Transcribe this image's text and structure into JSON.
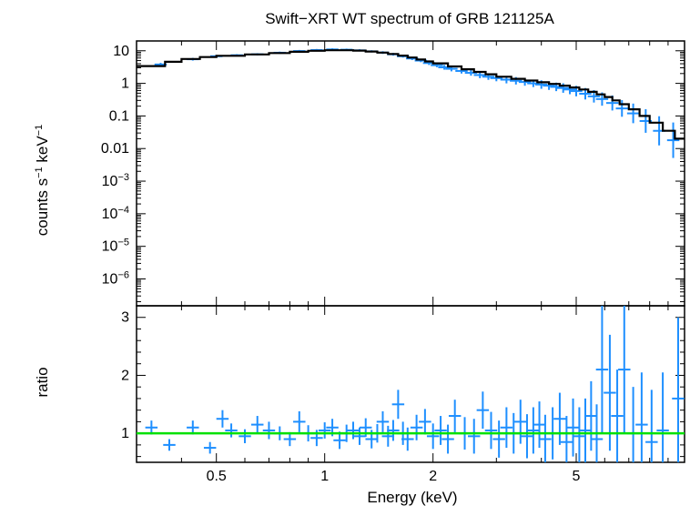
{
  "chart_data": {
    "type": "scatter",
    "title": "Swift−XRT WT spectrum of GRB 121125A",
    "xlabel": "Energy (keV)",
    "x_scale": "log",
    "xlim": [
      0.3,
      10
    ],
    "x_ticks": [
      {
        "value": 0.5,
        "label": "0.5"
      },
      {
        "value": 1,
        "label": "1"
      },
      {
        "value": 2,
        "label": "2"
      },
      {
        "value": 5,
        "label": "5"
      }
    ],
    "colors": {
      "data": "#1e8fff",
      "model": "#000000",
      "ratio_line": "#00e000"
    },
    "panels": [
      {
        "name": "spectrum",
        "ylabel": {
          "base": "counts s",
          "exp1": "−1",
          "mid": " keV",
          "exp2": "−1"
        },
        "y_scale": "log",
        "ylim": [
          1.5e-07,
          20
        ],
        "y_ticks": [
          {
            "value": 10,
            "label": "10"
          },
          {
            "value": 1,
            "label": "1"
          },
          {
            "value": 0.1,
            "label": "0.1"
          },
          {
            "value": 0.01,
            "label": "0.01"
          },
          {
            "value": 0.001,
            "base": "10",
            "exp": "−3"
          },
          {
            "value": 0.0001,
            "base": "10",
            "exp": "−4"
          },
          {
            "value": 1e-05,
            "base": "10",
            "exp": "−5"
          },
          {
            "value": 1e-06,
            "base": "10",
            "exp": "−6"
          }
        ],
        "series": [
          {
            "type": "errorbar",
            "x": [
              0.35,
              0.43,
              0.5,
              0.57,
              0.65,
              0.75,
              0.85,
              0.95,
              1.05,
              1.15,
              1.25,
              1.35,
              1.45,
              1.55,
              1.65,
              1.75,
              1.85,
              1.95,
              2.05,
              2.15,
              2.25,
              2.4,
              2.55,
              2.7,
              2.85,
              3.0,
              3.2,
              3.4,
              3.6,
              3.8,
              4.0,
              4.2,
              4.4,
              4.6,
              4.8,
              5.0,
              5.3,
              5.6,
              5.9,
              6.3,
              6.7,
              7.2,
              7.8,
              8.5,
              9.3
            ],
            "y": [
              3.8,
              5.5,
              6.8,
              7.3,
              7.8,
              8.7,
              9.8,
              10.5,
              11.0,
              10.8,
              10.3,
              9.6,
              8.8,
              7.8,
              6.8,
              5.8,
              5.0,
              4.2,
              3.6,
              3.1,
              2.8,
              2.4,
              2.1,
              1.8,
              1.6,
              1.45,
              1.3,
              1.2,
              1.1,
              1.0,
              0.92,
              0.85,
              0.78,
              0.72,
              0.65,
              0.58,
              0.48,
              0.4,
              0.33,
              0.25,
              0.17,
              0.12,
              0.07,
              0.035,
              0.018
            ],
            "yerr_factor": [
              1.12,
              1.1,
              1.1,
              1.08,
              1.08,
              1.08,
              1.08,
              1.08,
              1.08,
              1.08,
              1.08,
              1.08,
              1.1,
              1.1,
              1.1,
              1.12,
              1.12,
              1.15,
              1.15,
              1.18,
              1.2,
              1.2,
              1.22,
              1.25,
              1.25,
              1.25,
              1.3,
              1.3,
              1.3,
              1.3,
              1.35,
              1.35,
              1.35,
              1.4,
              1.4,
              1.45,
              1.5,
              1.55,
              1.6,
              1.7,
              1.8,
              2.0,
              2.3,
              2.8,
              3.5
            ]
          },
          {
            "type": "step",
            "name": "",
            "x": [
              0.3,
              0.36,
              0.4,
              0.45,
              0.5,
              0.6,
              0.7,
              0.8,
              0.9,
              1.0,
              1.1,
              1.2,
              1.3,
              1.4,
              1.5,
              1.6,
              1.7,
              1.8,
              1.9,
              2.0,
              2.2,
              2.4,
              2.6,
              2.8,
              3.0,
              3.3,
              3.6,
              3.9,
              4.2,
              4.5,
              4.8,
              5.1,
              5.4,
              5.7,
              6.0,
              6.3,
              6.6,
              7.0,
              7.5,
              8.0,
              8.7,
              9.4,
              10.0
            ],
            "y": [
              3.4,
              4.6,
              5.6,
              6.4,
              7.0,
              7.7,
              8.5,
              9.3,
              10.0,
              10.4,
              10.4,
              10.1,
              9.5,
              8.8,
              8.0,
              7.1,
              6.2,
              5.4,
              4.7,
              4.1,
              3.3,
              2.7,
              2.25,
              1.9,
              1.6,
              1.38,
              1.22,
              1.08,
              0.96,
              0.85,
              0.75,
              0.65,
              0.55,
              0.46,
              0.38,
              0.3,
              0.23,
              0.16,
              0.1,
              0.062,
              0.035,
              0.02,
              0.02
            ]
          }
        ]
      },
      {
        "name": "ratio",
        "ylabel": "ratio",
        "y_scale": "linear",
        "ylim": [
          0.5,
          3.2
        ],
        "y_ticks": [
          {
            "value": 1,
            "label": "1"
          },
          {
            "value": 2,
            "label": "2"
          },
          {
            "value": 3,
            "label": "3"
          }
        ],
        "reference_line": 1.0,
        "series": [
          {
            "type": "errorbar",
            "x": [
              0.33,
              0.37,
              0.43,
              0.48,
              0.52,
              0.55,
              0.6,
              0.65,
              0.7,
              0.75,
              0.8,
              0.85,
              0.9,
              0.95,
              1.0,
              1.05,
              1.1,
              1.15,
              1.2,
              1.25,
              1.3,
              1.35,
              1.4,
              1.45,
              1.5,
              1.55,
              1.6,
              1.65,
              1.7,
              1.8,
              1.9,
              2.0,
              2.1,
              2.2,
              2.3,
              2.45,
              2.6,
              2.75,
              2.9,
              3.05,
              3.2,
              3.35,
              3.5,
              3.65,
              3.8,
              3.95,
              4.1,
              4.3,
              4.5,
              4.7,
              4.9,
              5.1,
              5.3,
              5.5,
              5.7,
              5.9,
              6.2,
              6.5,
              6.8,
              7.2,
              7.6,
              8.1,
              8.7,
              9.6
            ],
            "y": [
              1.1,
              0.8,
              1.1,
              0.75,
              1.25,
              1.05,
              0.95,
              1.15,
              1.05,
              1.0,
              0.9,
              1.2,
              1.0,
              0.92,
              1.05,
              1.1,
              0.88,
              1.0,
              1.05,
              0.95,
              1.1,
              0.9,
              1.0,
              1.2,
              0.95,
              1.05,
              1.5,
              1.0,
              0.9,
              1.1,
              1.2,
              0.95,
              1.05,
              0.9,
              1.3,
              1.0,
              0.95,
              1.4,
              1.05,
              0.9,
              1.1,
              1.0,
              1.2,
              0.95,
              1.05,
              1.15,
              0.9,
              1.0,
              1.25,
              0.85,
              1.1,
              0.95,
              1.05,
              1.3,
              0.9,
              2.1,
              1.7,
              1.3,
              2.1,
              1.0,
              1.15,
              0.85,
              1.05,
              1.6
            ],
            "yerr": [
              0.12,
              0.1,
              0.12,
              0.1,
              0.15,
              0.12,
              0.12,
              0.15,
              0.15,
              0.12,
              0.12,
              0.18,
              0.14,
              0.14,
              0.14,
              0.15,
              0.15,
              0.15,
              0.15,
              0.15,
              0.16,
              0.16,
              0.16,
              0.18,
              0.18,
              0.18,
              0.25,
              0.2,
              0.2,
              0.22,
              0.22,
              0.22,
              0.25,
              0.25,
              0.28,
              0.28,
              0.3,
              0.32,
              0.32,
              0.32,
              0.35,
              0.35,
              0.38,
              0.38,
              0.4,
              0.4,
              0.42,
              0.45,
              0.45,
              0.45,
              0.5,
              0.5,
              0.55,
              0.6,
              0.6,
              1.1,
              1.0,
              0.8,
              1.1,
              0.8,
              0.9,
              0.9,
              1.0,
              1.4
            ]
          }
        ]
      }
    ]
  }
}
